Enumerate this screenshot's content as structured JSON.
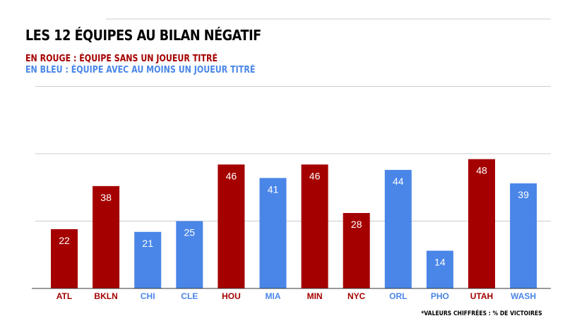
{
  "chart_data": {
    "type": "bar",
    "title": "LES 12 ÉQUIPES AU BILAN NÉGATIF",
    "legend": [
      {
        "label": "EN ROUGE : ÉQUIPE SANS UN JOUEUR TITRÉ",
        "color": "#a50000"
      },
      {
        "label": "EN BLEU : ÉQUIPE AVEC AU MOINS UN JOUEUR TITRÉ",
        "color": "#4a86e8"
      }
    ],
    "note": "*VALEURS CHIFFRÉES : % DE VICTOIRES",
    "categories": [
      "ATL",
      "BKLN",
      "CHI",
      "CLE",
      "HOU",
      "MIA",
      "MIN",
      "NYC",
      "ORL",
      "PHO",
      "UTAH",
      "WASH"
    ],
    "values": [
      22,
      38,
      21,
      25,
      46,
      41,
      46,
      28,
      44,
      14,
      48,
      39
    ],
    "groups": [
      "red",
      "red",
      "blue",
      "blue",
      "red",
      "blue",
      "red",
      "red",
      "blue",
      "blue",
      "red",
      "blue"
    ],
    "colors": {
      "red": "#a50000",
      "blue": "#4a86e8"
    },
    "ylim": [
      0,
      100
    ],
    "grid": true,
    "xlabel": "",
    "ylabel": ""
  }
}
